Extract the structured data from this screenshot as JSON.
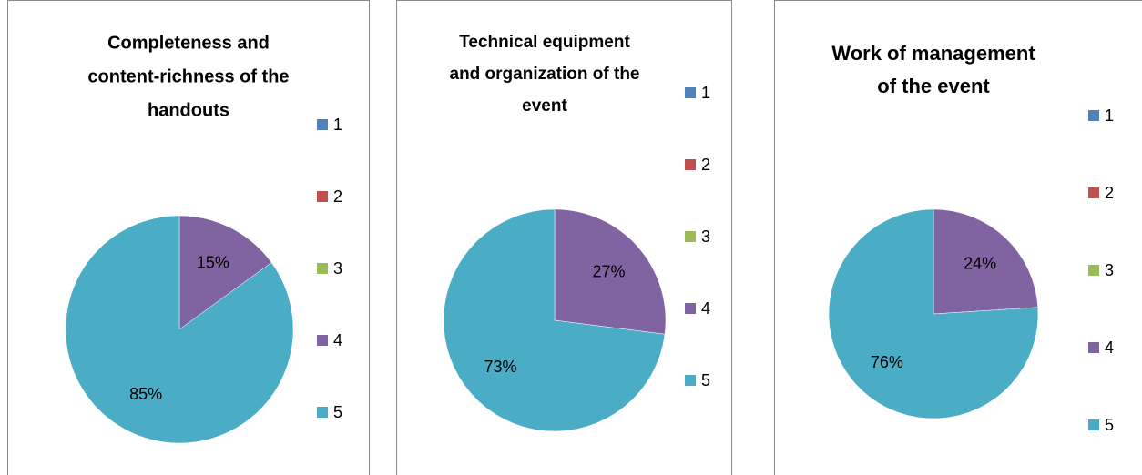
{
  "chart_data": [
    {
      "type": "pie",
      "title": [
        "Completeness and",
        "content-richness of the",
        "handouts"
      ],
      "categories": [
        "1",
        "2",
        "3",
        "4",
        "5"
      ],
      "values": [
        0,
        0,
        0,
        15,
        85
      ],
      "value_labels": [
        null,
        null,
        null,
        "15%",
        "85%"
      ],
      "colors": [
        "#4f81bd",
        "#c0504d",
        "#9bbb59",
        "#8064a2",
        "#4bacc6"
      ],
      "legend": "right"
    },
    {
      "type": "pie",
      "title": [
        "Technical equipment",
        "and organization of the",
        "event"
      ],
      "categories": [
        "1",
        "2",
        "3",
        "4",
        "5"
      ],
      "values": [
        0,
        0,
        0,
        27,
        73
      ],
      "value_labels": [
        null,
        null,
        null,
        "27%",
        "73%"
      ],
      "colors": [
        "#4f81bd",
        "#c0504d",
        "#9bbb59",
        "#8064a2",
        "#4bacc6"
      ],
      "legend": "right"
    },
    {
      "type": "pie",
      "title": [
        "Work of management",
        "of the event"
      ],
      "categories": [
        "1",
        "2",
        "3",
        "4",
        "5"
      ],
      "values": [
        0,
        0,
        0,
        24,
        76
      ],
      "value_labels": [
        null,
        null,
        null,
        "24%",
        "76%"
      ],
      "colors": [
        "#4f81bd",
        "#c0504d",
        "#9bbb59",
        "#8064a2",
        "#4bacc6"
      ],
      "legend": "right"
    }
  ]
}
